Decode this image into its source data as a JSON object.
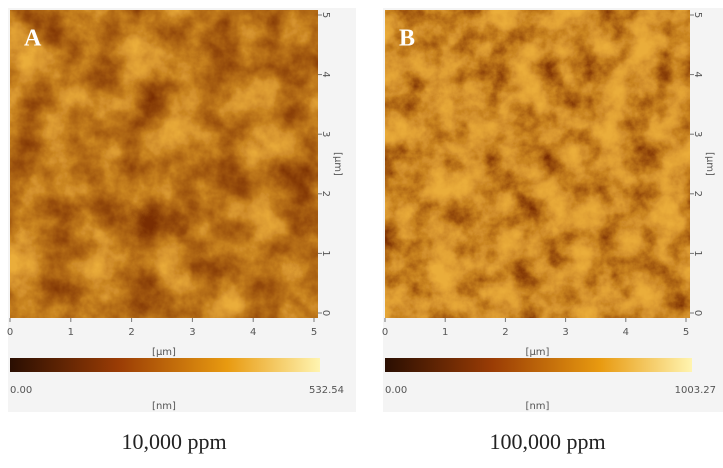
{
  "panels": [
    {
      "label": "A",
      "x_ticks": [
        0,
        1,
        2,
        3,
        4,
        5
      ],
      "y_ticks": [
        0,
        1,
        2,
        3,
        4,
        5
      ],
      "x_unit": "[µm]",
      "y_unit": "[µm]",
      "scale_min": "0.00",
      "scale_max": "532.54",
      "scale_unit": "[nm]",
      "caption": "10,000 ppm"
    },
    {
      "label": "B",
      "x_ticks": [
        0,
        1,
        2,
        3,
        4,
        5
      ],
      "y_ticks": [
        0,
        1,
        2,
        3,
        4,
        5
      ],
      "x_unit": "[µm]",
      "y_unit": "[µm]",
      "scale_min": "0.00",
      "scale_max": "1003.27",
      "scale_unit": "[nm]",
      "caption": "100,000 ppm"
    }
  ]
}
